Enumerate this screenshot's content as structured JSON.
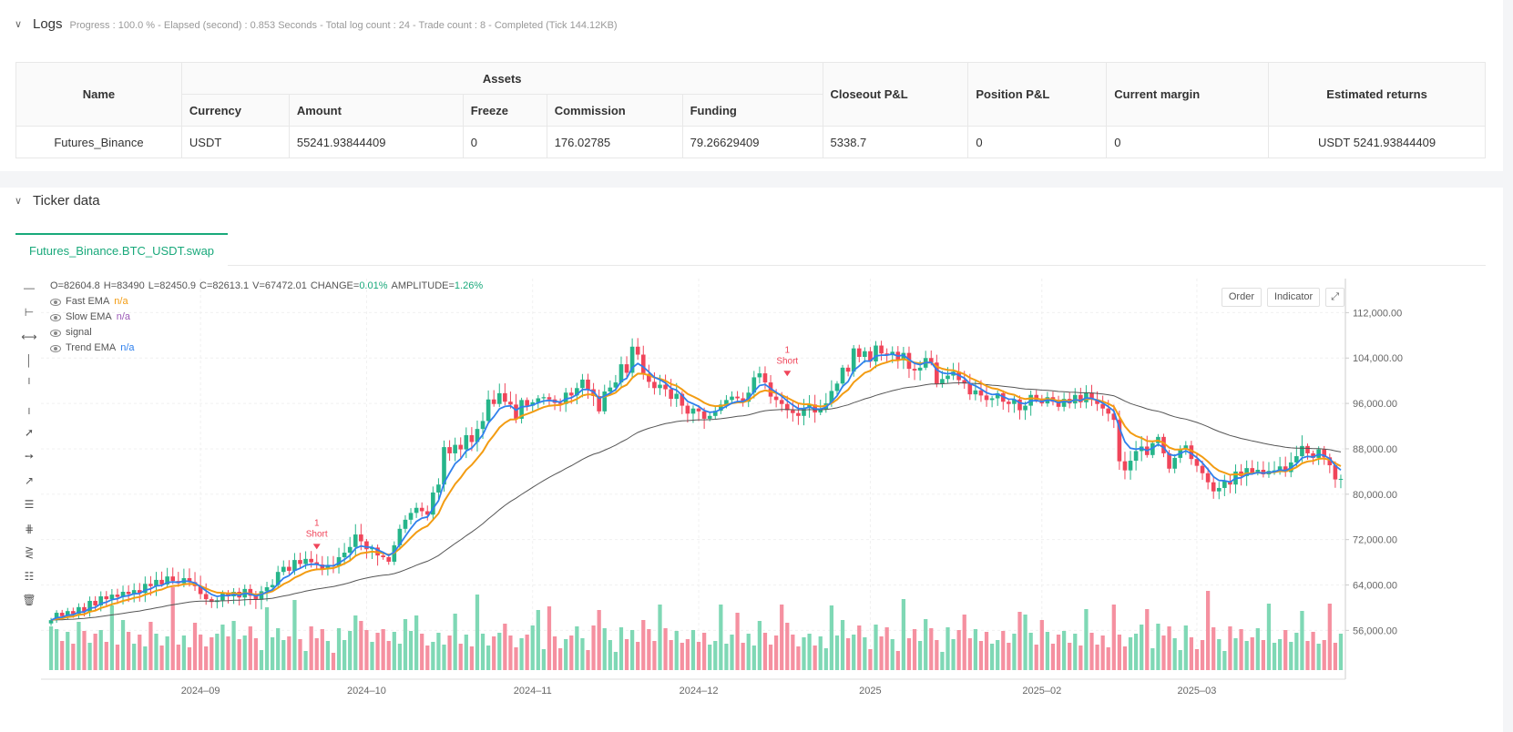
{
  "logs": {
    "title": "Logs",
    "stats": "Progress : 100.0 % - Elapsed (second) : 0.853  Seconds - Total log count : 24 - Trade count : 8 - Completed (Tick 144.12KB)"
  },
  "assets_table": {
    "group_header": "Assets",
    "headers": {
      "name": "Name",
      "currency": "Currency",
      "amount": "Amount",
      "freeze": "Freeze",
      "commission": "Commission",
      "funding": "Funding",
      "closeout": "Closeout P&L",
      "position": "Position P&L",
      "margin": "Current margin",
      "returns": "Estimated returns"
    },
    "row": {
      "name": "Futures_Binance",
      "currency": "USDT",
      "amount": "55241.93844409",
      "freeze": "0",
      "commission": "176.02785",
      "funding": "79.26629409",
      "closeout": "5338.7",
      "position": "0",
      "margin": "0",
      "returns": "USDT 5241.93844409"
    }
  },
  "ticker": {
    "title": "Ticker data",
    "tab": "Futures_Binance.BTC_USDT.swap"
  },
  "chart_buttons": {
    "order": "Order",
    "indicator": "Indicator"
  },
  "legend": {
    "ohlc": {
      "o": "O=82604.8",
      "h": "H=83490",
      "l": "L=82450.9",
      "c": "C=82613.1",
      "v": "V=67472.01",
      "change_label": "CHANGE=",
      "change": "0.01%",
      "amp_label": "AMPLITUDE=",
      "amp": "1.26%"
    },
    "series": [
      {
        "name": "Fast EMA",
        "value": "n/a",
        "color": "#f39c12"
      },
      {
        "name": "Slow EMA",
        "value": "n/a",
        "color": "#9b59b6"
      },
      {
        "name": "signal",
        "value": "",
        "color": "#555555"
      },
      {
        "name": "Trend EMA",
        "value": "n/a",
        "color": "#2f80ed"
      }
    ]
  },
  "chart_data": {
    "type": "candlestick",
    "x_tick_labels": [
      "2024–09",
      "2024–10",
      "2024–11",
      "2024–12",
      "2025",
      "2025–02",
      "2025–03"
    ],
    "y_tick_labels": [
      "112,000.00",
      "104,000.00",
      "96,000.00",
      "88,000.00",
      "80,000.00",
      "72,000.00",
      "64,000.00",
      "56,000.00"
    ],
    "y_ticks": [
      112000,
      104000,
      96000,
      88000,
      80000,
      72000,
      64000,
      56000
    ],
    "ylim": [
      49000,
      118000
    ],
    "annotations": [
      {
        "label_1": "1",
        "label_2": "Short",
        "date_index": 48,
        "price": 69000
      },
      {
        "label_1": "1",
        "label_2": "Short",
        "date_index": 133,
        "price": 99500
      }
    ],
    "closes": [
      57800,
      59100,
      58500,
      59400,
      58900,
      60100,
      59300,
      61200,
      60400,
      62000,
      61500,
      62300,
      61900,
      62800,
      62400,
      63100,
      62600,
      64200,
      63800,
      64900,
      64100,
      65500,
      64700,
      64300,
      65200,
      64500,
      63800,
      62400,
      61500,
      61000,
      61300,
      62500,
      62000,
      62800,
      61800,
      63300,
      62100,
      61400,
      62900,
      63600,
      64000,
      66300,
      67200,
      66500,
      68400,
      67700,
      68600,
      68000,
      67600,
      66800,
      67500,
      67300,
      68900,
      69700,
      70700,
      72900,
      71700,
      70300,
      70600,
      69200,
      68900,
      68100,
      71000,
      73900,
      75500,
      76700,
      77600,
      77000,
      76400,
      80300,
      81700,
      88300,
      87200,
      88700,
      87900,
      90400,
      89200,
      91500,
      92900,
      96700,
      95900,
      97800,
      96300,
      95800,
      93300,
      96600,
      95600,
      96200,
      96900,
      97100,
      96700,
      96100,
      95900,
      97900,
      97400,
      98700,
      100200,
      98500,
      97300,
      94600,
      98100,
      98800,
      99700,
      102900,
      101400,
      106000,
      104600,
      101200,
      99800,
      98700,
      99300,
      98500,
      96800,
      97700,
      95600,
      94200,
      95100,
      94600,
      93300,
      93800,
      94700,
      95800,
      96600,
      97200,
      96900,
      96300,
      97900,
      100600,
      101300,
      99700,
      97200,
      96600,
      95900,
      94800,
      94300,
      93800,
      95200,
      95800,
      94400,
      94900,
      96000,
      98200,
      99500,
      102300,
      101600,
      105700,
      104200,
      105200,
      103400,
      106200,
      104800,
      104500,
      105100,
      103600,
      104900,
      102100,
      101800,
      102300,
      104000,
      103200,
      99400,
      100300,
      100900,
      101600,
      100100,
      99500,
      97600,
      98300,
      97400,
      96600,
      96900,
      97800,
      96300,
      95900,
      96700,
      94800,
      95600,
      97500,
      96600,
      96000,
      97100,
      96300,
      95400,
      96800,
      96000,
      97500,
      96200,
      97900,
      96700,
      95900,
      95100,
      94200,
      93100,
      85800,
      84200,
      85900,
      87600,
      88400,
      86900,
      89000,
      90100,
      87200,
      84500,
      86400,
      87900,
      88600,
      86200,
      85000,
      83700,
      82100,
      80500,
      81100,
      82300,
      81700,
      84000,
      83200,
      84600,
      83800,
      84300,
      83500,
      84100,
      84200,
      84900,
      83900,
      85600,
      86700,
      88500,
      87200,
      86400,
      87900,
      86500,
      85100,
      82600,
      82700
    ]
  }
}
